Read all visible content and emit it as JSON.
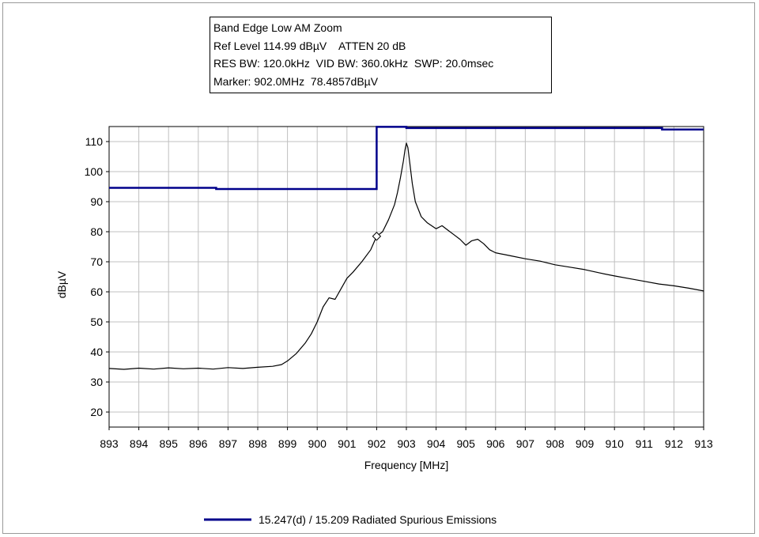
{
  "info": {
    "line1": "Band Edge Low AM Zoom",
    "line2": "Ref Level 114.99 dBµV    ATTEN 20 dB",
    "line3": "RES BW: 120.0kHz  VID BW: 360.0kHz  SWP: 20.0msec",
    "line4": "Marker: 902.0MHz  78.4857dBµV"
  },
  "colors": {
    "background": "#ffffff",
    "grid": "#c0c0c0",
    "trace": "#000000",
    "limit": "#00008b"
  },
  "chart_data": {
    "type": "line",
    "title": "Band Edge Low AM Zoom",
    "xlabel": "Frequency [MHz]",
    "ylabel": "dBµV",
    "xlim": [
      893,
      913
    ],
    "ylim": [
      15,
      115
    ],
    "xticks": [
      893,
      894,
      895,
      896,
      897,
      898,
      899,
      900,
      901,
      902,
      903,
      904,
      905,
      906,
      907,
      908,
      909,
      910,
      911,
      912,
      913
    ],
    "yticks": [
      20,
      30,
      40,
      50,
      60,
      70,
      80,
      90,
      100,
      110
    ],
    "grid": true,
    "legend_placement": "bottom-center",
    "series": [
      {
        "name": "15.247(d) / 15.209 Radiated Spurious Emissions",
        "role": "limit",
        "x": [
          893,
          896.6,
          896.6,
          902.0,
          902.0,
          903.0,
          903.0,
          911.6,
          911.6,
          913
        ],
        "values": [
          94.6,
          94.6,
          94.2,
          94.2,
          114.9,
          114.9,
          114.5,
          114.5,
          114.0,
          114.0
        ]
      },
      {
        "role": "measurement",
        "x": [
          893,
          893.5,
          894,
          894.5,
          895,
          895.5,
          896,
          896.5,
          897,
          897.5,
          898,
          898.5,
          898.8,
          899,
          899.3,
          899.6,
          899.8,
          900,
          900.2,
          900.4,
          900.6,
          900.8,
          901,
          901.2,
          901.5,
          901.8,
          902,
          902.2,
          902.4,
          902.6,
          902.7,
          902.8,
          902.9,
          902.95,
          903,
          903.05,
          903.1,
          903.2,
          903.3,
          903.5,
          903.7,
          904,
          904.2,
          904.4,
          904.6,
          904.8,
          905,
          905.2,
          905.4,
          905.6,
          905.8,
          906,
          906.5,
          907,
          907.5,
          908,
          908.5,
          909,
          909.5,
          910,
          910.5,
          911,
          911.5,
          912,
          912.5,
          913
        ],
        "values": [
          34.5,
          34.2,
          34.6,
          34.3,
          34.7,
          34.4,
          34.6,
          34.3,
          34.8,
          34.5,
          34.9,
          35.2,
          35.8,
          37.0,
          39.5,
          43.0,
          46.0,
          50.0,
          55.0,
          58.0,
          57.5,
          61.0,
          64.5,
          66.5,
          70.0,
          74.0,
          78.5,
          80.0,
          84.0,
          89.0,
          93.0,
          98.0,
          103.5,
          107.0,
          109.5,
          108.0,
          104.0,
          96.0,
          90.0,
          85.0,
          83.0,
          81.0,
          82.0,
          80.5,
          79.0,
          77.5,
          75.5,
          77.0,
          77.5,
          76.0,
          74.0,
          73.0,
          72.0,
          71.0,
          70.2,
          69.0,
          68.2,
          67.4,
          66.3,
          65.3,
          64.4,
          63.5,
          62.6,
          62.0,
          61.2,
          60.3
        ]
      }
    ],
    "marker": {
      "x": 902.0,
      "y": 78.4857,
      "shape": "diamond"
    }
  },
  "legend": {
    "label": "15.247(d) / 15.209 Radiated Spurious Emissions"
  }
}
